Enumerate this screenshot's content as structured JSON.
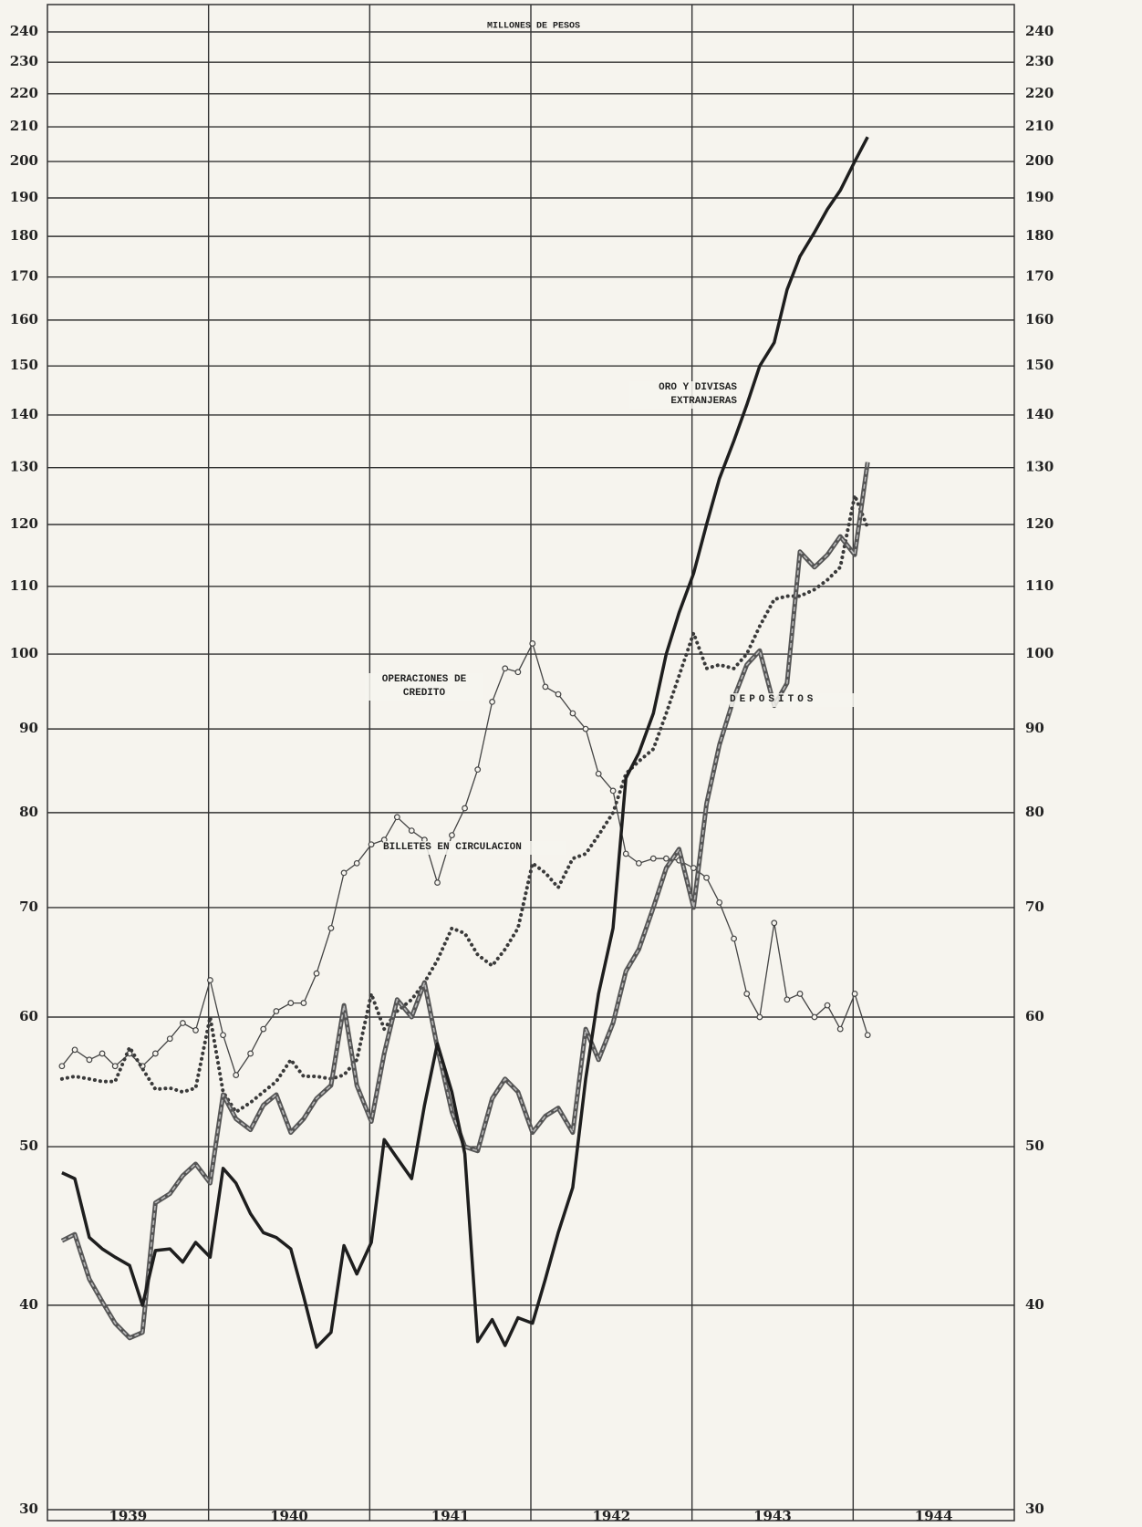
{
  "chart_data": {
    "type": "line",
    "title": "MILLONES DE PESOS",
    "log_scale": true,
    "grid": true,
    "xlim": [
      1939,
      1945
    ],
    "xticks": [
      {
        "value": 1939.5,
        "label": "1939"
      },
      {
        "value": 1940.5,
        "label": "1940"
      },
      {
        "value": 1941.5,
        "label": "1941"
      },
      {
        "value": 1942.5,
        "label": "1942"
      },
      {
        "value": 1943.5,
        "label": "1943"
      },
      {
        "value": 1944.5,
        "label": "1944"
      }
    ],
    "xgrid": [
      1940,
      1941,
      1942,
      1943,
      1944
    ],
    "ylim": [
      30,
      240
    ],
    "yticks": [
      30,
      40,
      50,
      60,
      70,
      80,
      90,
      100,
      110,
      120,
      130,
      140,
      150,
      160,
      170,
      180,
      190,
      200,
      210,
      220,
      230,
      240
    ],
    "x": [
      1939.09,
      1939.17,
      1939.26,
      1939.34,
      1939.42,
      1939.51,
      1939.59,
      1939.67,
      1939.76,
      1939.84,
      1939.92,
      1940.01,
      1940.09,
      1940.17,
      1940.26,
      1940.34,
      1940.42,
      1940.51,
      1940.59,
      1940.67,
      1940.76,
      1940.84,
      1940.92,
      1941.01,
      1941.09,
      1941.17,
      1941.26,
      1941.34,
      1941.42,
      1941.51,
      1941.59,
      1941.67,
      1941.76,
      1941.84,
      1941.92,
      1942.01,
      1942.09,
      1942.17,
      1942.26,
      1942.34,
      1942.42,
      1942.51,
      1942.59,
      1942.67,
      1942.76,
      1942.84,
      1942.92,
      1943.01,
      1943.09,
      1943.17,
      1943.26,
      1943.34,
      1943.42,
      1943.51,
      1943.59,
      1943.67,
      1943.76,
      1943.84,
      1943.92,
      1944.01,
      1944.09
    ],
    "series": [
      {
        "name": "OPERACIONES DE CREDITO",
        "color": "#444444",
        "style": "marker",
        "values": [
          56.0,
          57.3,
          56.5,
          57.0,
          56.0,
          57.0,
          56.0,
          57.0,
          58.2,
          59.5,
          58.9,
          63.2,
          58.5,
          55.3,
          57.0,
          59.0,
          60.5,
          61.2,
          61.2,
          63.8,
          68.0,
          73.5,
          74.5,
          76.5,
          77.0,
          79.5,
          78.0,
          77.0,
          72.5,
          77.5,
          80.5,
          85.0,
          93.5,
          98.0,
          97.5,
          101.5,
          95.5,
          94.5,
          92.0,
          90.0,
          84.5,
          82.5,
          75.5,
          74.5,
          75.0,
          75.0,
          74.8,
          74.0,
          73.0,
          70.5,
          67.0,
          62.0,
          60.0,
          68.5,
          61.5,
          62.0,
          60.0,
          61.0,
          59.0,
          62.0,
          58.5
        ]
      },
      {
        "name": "BILLETES EN CIRCULACION",
        "color": "#3a3a3a",
        "style": "dotted",
        "values": [
          55.0,
          55.2,
          55.0,
          54.8,
          54.8,
          57.5,
          55.8,
          54.2,
          54.3,
          54.0,
          54.3,
          60.0,
          54.0,
          52.5,
          53.2,
          54.0,
          54.8,
          56.5,
          55.2,
          55.2,
          55.0,
          55.3,
          56.5,
          62.0,
          59.0,
          60.5,
          61.5,
          63.0,
          65.0,
          68.0,
          67.5,
          65.5,
          64.5,
          66.0,
          68.0,
          74.5,
          73.5,
          72.0,
          75.0,
          75.5,
          77.5,
          80.0,
          84.5,
          86.0,
          87.5,
          92.0,
          97.0,
          103.0,
          98.0,
          98.5,
          98.0,
          100.0,
          104.0,
          108.0,
          108.5,
          108.5,
          109.5,
          111.0,
          113.0,
          125.0,
          119.5
        ]
      },
      {
        "name": "DEPOSITOS",
        "color": "#555555",
        "style": "double",
        "values": [
          43.8,
          44.2,
          41.5,
          40.2,
          39.0,
          38.2,
          38.5,
          46.2,
          46.8,
          48.0,
          48.8,
          47.5,
          53.8,
          52.0,
          51.2,
          53.0,
          53.8,
          51.0,
          52.0,
          53.5,
          54.5,
          61.0,
          54.5,
          51.8,
          57.0,
          61.5,
          60.0,
          63.0,
          57.5,
          52.5,
          50.0,
          49.7,
          53.5,
          55.0,
          54.0,
          51.0,
          52.2,
          52.8,
          51.0,
          59.0,
          56.5,
          59.5,
          64.0,
          66.0,
          70.0,
          74.0,
          76.0,
          70.0,
          81.0,
          88.0,
          94.0,
          98.5,
          100.5,
          93.0,
          96.0,
          115.5,
          113.0,
          115.0,
          118.0,
          115.0,
          131.0
        ]
      },
      {
        "name": "ORO Y DIVISAS EXTRANJERAS",
        "color": "#1e1e1e",
        "style": "solid",
        "values": [
          48.2,
          47.8,
          44.0,
          43.3,
          42.8,
          42.3,
          40.0,
          43.2,
          43.3,
          42.5,
          43.7,
          42.8,
          48.5,
          47.5,
          45.5,
          44.3,
          44.0,
          43.3,
          40.5,
          37.7,
          38.5,
          43.5,
          41.8,
          43.7,
          50.5,
          49.2,
          47.8,
          53.0,
          57.8,
          54.0,
          49.5,
          38.0,
          39.2,
          37.8,
          39.3,
          39.0,
          41.5,
          44.3,
          47.2,
          55.0,
          62.0,
          68.0,
          84.0,
          87.0,
          92.0,
          100.0,
          106.0,
          112.0,
          120.0,
          128.0,
          135.0,
          142.0,
          150.0,
          155.0,
          167.0,
          175.0,
          181.0,
          187.0,
          192.0,
          200.0,
          207.0
        ]
      }
    ]
  }
}
